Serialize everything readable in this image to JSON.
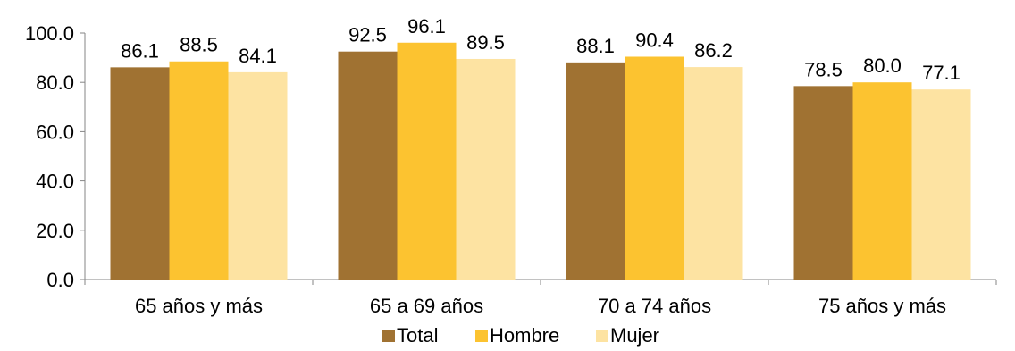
{
  "chart_data": {
    "type": "bar",
    "categories": [
      "65 años y más",
      "65 a 69 años",
      "70 a 74 años",
      "75 años y más"
    ],
    "series": [
      {
        "name": "Total",
        "values": [
          86.1,
          92.5,
          88.1,
          78.5
        ],
        "color": "#A07232"
      },
      {
        "name": "Hombre",
        "values": [
          88.5,
          96.1,
          90.4,
          80.0
        ],
        "color": "#FCC330"
      },
      {
        "name": "Mujer",
        "values": [
          84.1,
          89.5,
          86.2,
          77.1
        ],
        "color": "#FDE3A2"
      }
    ],
    "value_labels": [
      [
        "86.1",
        "92.5",
        "88.1",
        "78.5"
      ],
      [
        "88.5",
        "96.1",
        "90.4",
        "80.0"
      ],
      [
        "84.1",
        "89.5",
        "86.2",
        "77.1"
      ]
    ],
    "ylim": [
      0,
      100
    ],
    "yticks": [
      0,
      20,
      40,
      60,
      80,
      100
    ],
    "ytick_labels": [
      "0.0",
      "20.0",
      "40.0",
      "60.0",
      "80.0",
      "100.0"
    ],
    "title": "",
    "xlabel": "",
    "ylabel": "",
    "legend_position": "bottom",
    "grid": false,
    "axis_color": "#868686"
  }
}
